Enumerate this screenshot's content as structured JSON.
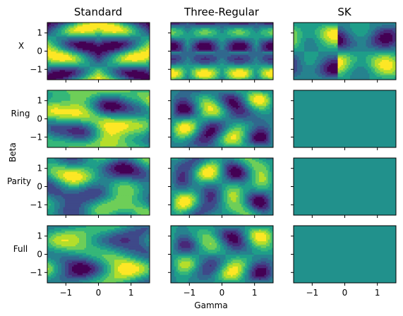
{
  "chart_data": {
    "type": "heatmap",
    "columns": [
      "Standard",
      "Three-Regular",
      "SK"
    ],
    "rows": [
      "X",
      "Ring",
      "Parity",
      "Full"
    ],
    "xlabel": "Gamma",
    "ylabel": "Beta",
    "xlim": [
      -1.57,
      1.57
    ],
    "ylim": [
      -1.57,
      1.57
    ],
    "xticks": [
      -1,
      0,
      1
    ],
    "yticks": [
      1,
      0,
      -1
    ],
    "xtick_labels": [
      "−1",
      "0",
      "1"
    ],
    "ytick_labels": [
      "1",
      "0",
      "−1"
    ],
    "colormap": "viridis",
    "colors": {
      "viridis": [
        "#440154",
        "#482878",
        "#3e4989",
        "#31688e",
        "#26828e",
        "#1f9e89",
        "#35b779",
        "#6ece58",
        "#b5de2b",
        "#fde725"
      ],
      "flat_panel": "#21918c"
    },
    "panels": [
      {
        "row": 0,
        "col": 0,
        "pattern": "x_standard"
      },
      {
        "row": 0,
        "col": 1,
        "pattern": "x_three_regular"
      },
      {
        "row": 0,
        "col": 2,
        "pattern": "x_sk"
      },
      {
        "row": 1,
        "col": 0,
        "pattern": "ring_standard"
      },
      {
        "row": 1,
        "col": 1,
        "pattern": "ring_three_regular"
      },
      {
        "row": 1,
        "col": 2,
        "pattern": "flat"
      },
      {
        "row": 2,
        "col": 0,
        "pattern": "parity_standard"
      },
      {
        "row": 2,
        "col": 1,
        "pattern": "parity_three_regular"
      },
      {
        "row": 2,
        "col": 2,
        "pattern": "flat"
      },
      {
        "row": 3,
        "col": 0,
        "pattern": "full_standard"
      },
      {
        "row": 3,
        "col": 1,
        "pattern": "full_three_regular"
      },
      {
        "row": 3,
        "col": 2,
        "pattern": "flat"
      }
    ]
  }
}
